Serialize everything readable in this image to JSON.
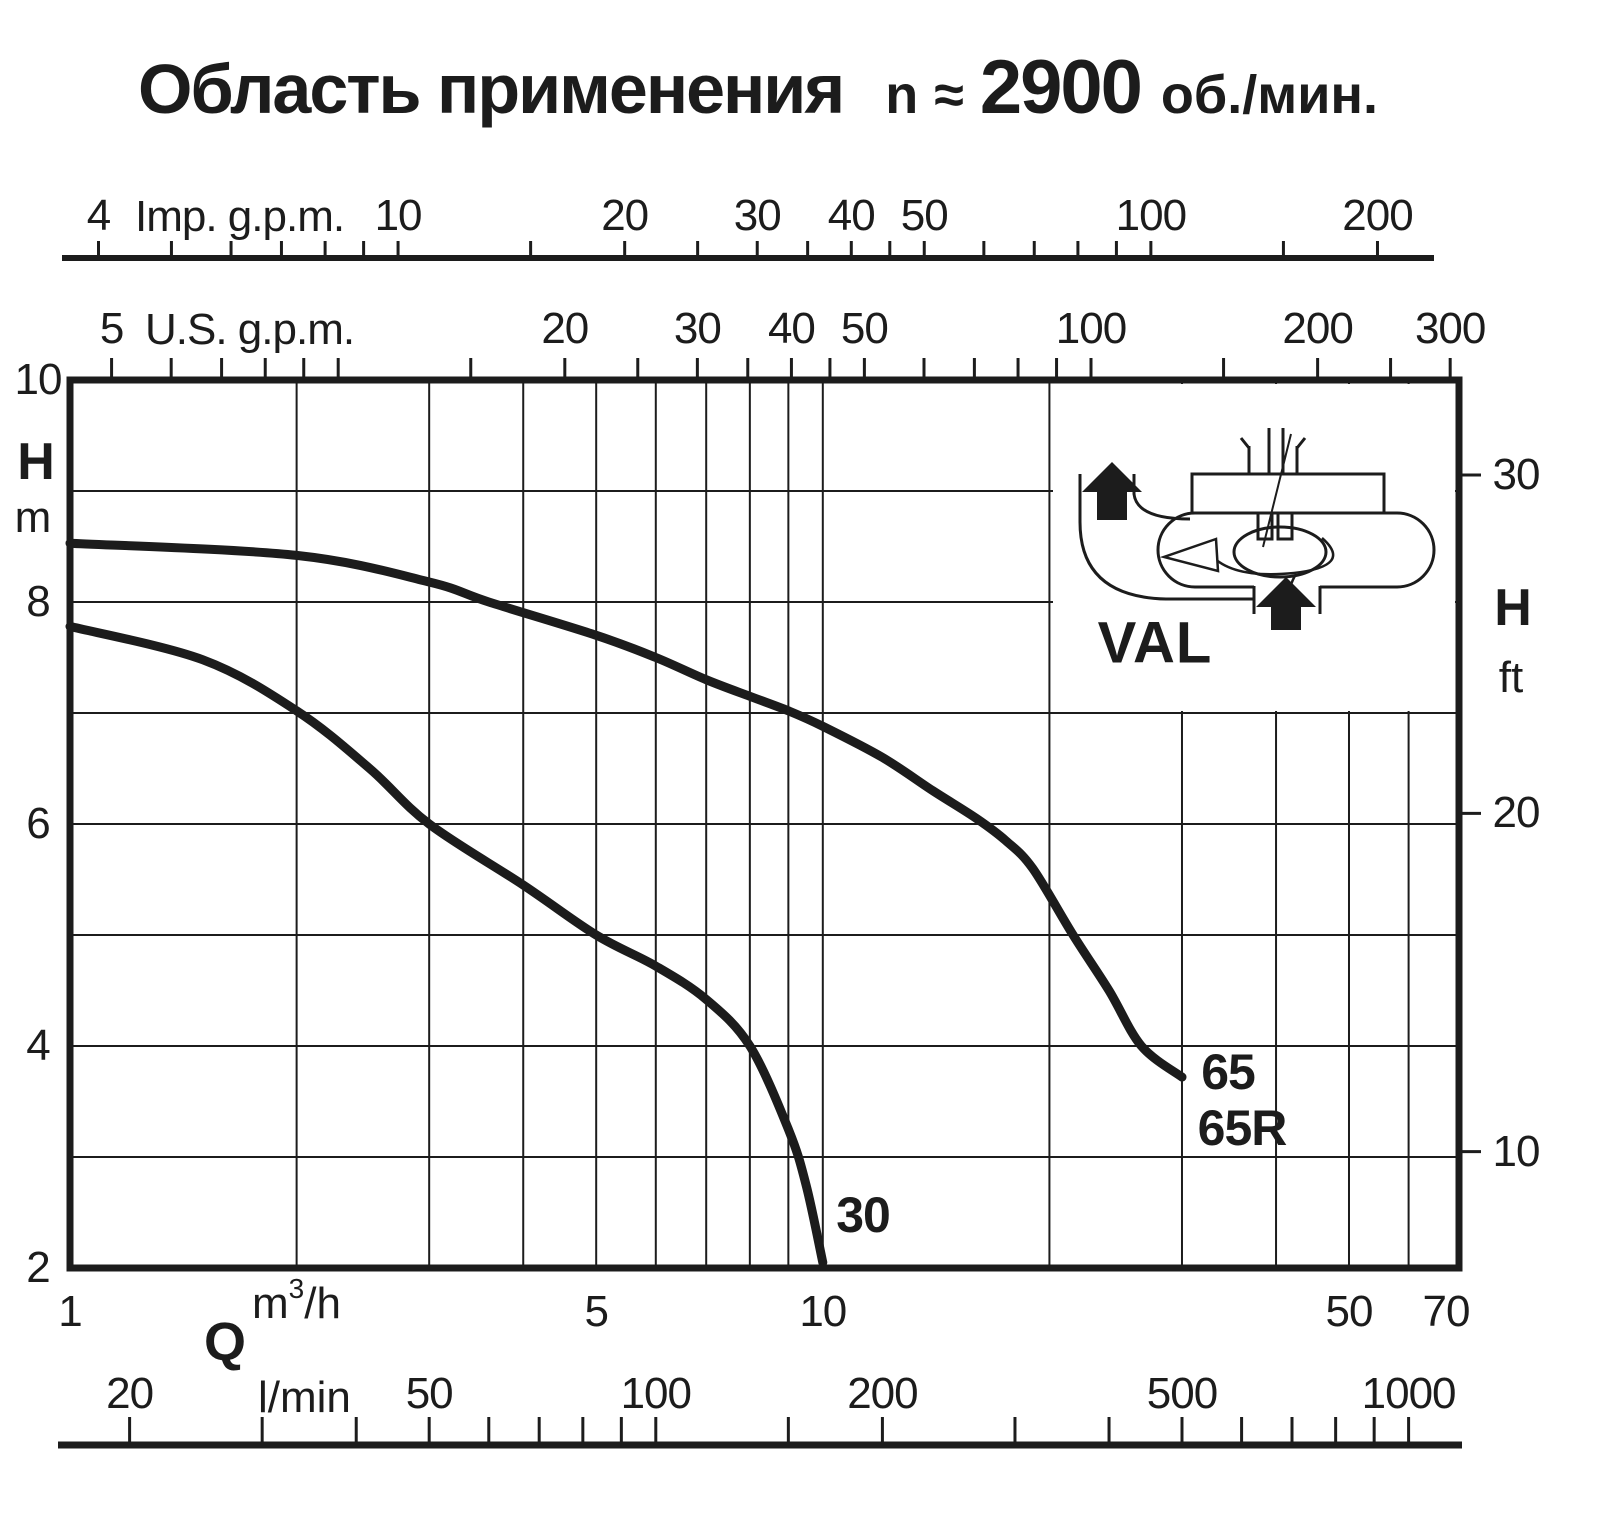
{
  "title": {
    "main": "Область применения",
    "n": "n",
    "approx": "≈",
    "value": "2900",
    "unit": "об./мин."
  },
  "colors": {
    "ink": "#1c1c1c",
    "bg": "#ffffff"
  },
  "chart_data": {
    "type": "line",
    "title": "Область применения",
    "subtitle": "n ≈ 2900 об./мин.",
    "x_axis": {
      "label": "Q",
      "scale": "log",
      "range_m3h": [
        1,
        70
      ],
      "unit_m3h_parts": {
        "base": "m",
        "sup": "3",
        "rest": "/h"
      },
      "unit_lmin": "l/min",
      "m3h_labels": [
        1,
        5,
        10,
        50,
        70
      ],
      "gridlines_m3h": [
        2,
        3,
        4,
        5,
        6,
        7,
        8,
        9,
        10,
        20,
        30,
        40,
        50,
        60
      ],
      "lmin_ticks": [
        20,
        30,
        40,
        50,
        60,
        70,
        80,
        90,
        100,
        150,
        200,
        300,
        400,
        500,
        600,
        700,
        800,
        900,
        1000
      ],
      "lmin_labels": [
        20,
        50,
        100,
        200,
        500,
        1000
      ]
    },
    "top_axis_imp_gpm": {
      "label": "Imp. g.p.m.",
      "per_m3h": 3.6662,
      "ticks": [
        4,
        5,
        6,
        7,
        8,
        9,
        10,
        15,
        20,
        25,
        30,
        35,
        40,
        45,
        50,
        60,
        70,
        80,
        90,
        100,
        150,
        200
      ],
      "labels": [
        4,
        10,
        20,
        30,
        40,
        50,
        100,
        200
      ]
    },
    "top_axis_us_gpm": {
      "label": "U.S. g.p.m.",
      "per_m3h": 4.4029,
      "ticks": [
        5,
        6,
        7,
        8,
        9,
        10,
        15,
        20,
        25,
        30,
        35,
        40,
        45,
        50,
        60,
        70,
        80,
        90,
        100,
        150,
        200,
        250,
        300
      ],
      "labels": [
        5,
        20,
        30,
        40,
        50,
        100,
        200,
        300
      ]
    },
    "y_axis": {
      "label": "H",
      "unit": "m",
      "scale": "linear",
      "range": [
        2,
        10
      ],
      "labels": [
        10,
        8,
        6,
        4,
        2
      ],
      "gridlines": [
        3,
        4,
        5,
        6,
        7,
        8,
        9
      ]
    },
    "y_axis_right": {
      "label": "H",
      "unit": "ft",
      "m_per_ft": 0.3048,
      "labels": [
        30,
        20,
        10
      ]
    },
    "series": [
      {
        "name": "30",
        "label": "30",
        "points_m3h_m": [
          [
            1,
            7.78
          ],
          [
            1.5,
            7.48
          ],
          [
            2,
            7.02
          ],
          [
            2.5,
            6.5
          ],
          [
            3,
            6.0
          ],
          [
            4,
            5.45
          ],
          [
            5,
            5.0
          ],
          [
            6,
            4.72
          ],
          [
            7,
            4.42
          ],
          [
            8,
            4.0
          ],
          [
            9,
            3.25
          ],
          [
            9.5,
            2.75
          ],
          [
            10,
            2.05
          ]
        ]
      },
      {
        "name": "65 / 65R",
        "labels": [
          "65",
          "65R"
        ],
        "points_m3h_m": [
          [
            1,
            8.53
          ],
          [
            2,
            8.42
          ],
          [
            3,
            8.18
          ],
          [
            3.6,
            8.0
          ],
          [
            5,
            7.7
          ],
          [
            6,
            7.5
          ],
          [
            7,
            7.3
          ],
          [
            8,
            7.15
          ],
          [
            9,
            7.02
          ],
          [
            10,
            6.88
          ],
          [
            12,
            6.6
          ],
          [
            14,
            6.3
          ],
          [
            16,
            6.05
          ],
          [
            17.5,
            5.85
          ],
          [
            19,
            5.6
          ],
          [
            21.5,
            5.0
          ],
          [
            24,
            4.5
          ],
          [
            26.5,
            4.0
          ],
          [
            30,
            3.72
          ]
        ]
      }
    ],
    "inset": {
      "label": "VAL"
    }
  }
}
